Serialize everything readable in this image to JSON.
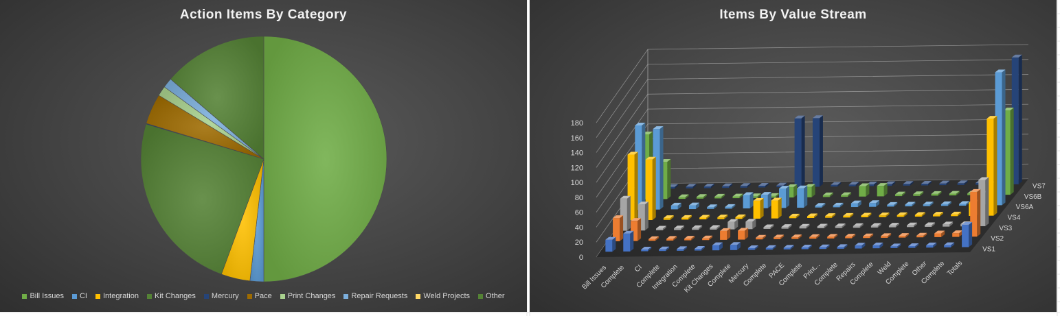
{
  "colors": {
    "panel_bg": "#404040",
    "sheet_bg": "#ffffff",
    "gridline": "#bfbfbf",
    "text": "#d9d9d9",
    "title": "#f2f2f2"
  },
  "chart_data": [
    {
      "type": "pie",
      "title": "Action Items By Category",
      "legend_position": "bottom",
      "labels": [
        "Bill Issues",
        "CI",
        "Integration",
        "Kit Changes",
        "Mercury",
        "Pace",
        "Print Changes",
        "Repair Requests",
        "Weld Projects",
        "Other"
      ],
      "values": [
        50.0,
        1.8,
        3.8,
        24.0,
        0.1,
        4.0,
        1.3,
        1.3,
        0.0,
        13.7
      ],
      "colors": [
        "#70ad47",
        "#5b9bd5",
        "#ffc000",
        "#548235",
        "#264478",
        "#9e6b00",
        "#a9d18e",
        "#7cafdd",
        "#ffd966",
        "#548235"
      ]
    },
    {
      "type": "bar",
      "subtype": "3d-column",
      "title": "Items By Value Stream",
      "grid": true,
      "ylim": [
        0,
        180
      ],
      "yticks": [
        0,
        20,
        40,
        60,
        80,
        100,
        120,
        140,
        160,
        180
      ],
      "categories": [
        "Bill Issues",
        "Complete",
        "CI",
        "Complete",
        "Integration",
        "Complete",
        "Kit Changes",
        "Complete",
        "Mercury",
        "Complete",
        "PACE",
        "Complete",
        "Print...",
        "Complete",
        "Repairs",
        "Complete",
        "Weld",
        "Complete",
        "Other",
        "Complete",
        "Totals"
      ],
      "series": [
        {
          "name": "VS1",
          "color": "#4472c4",
          "values": [
            16,
            24,
            1,
            1,
            0,
            0,
            7,
            7,
            0,
            0,
            1,
            1,
            0,
            0,
            4,
            4,
            0,
            0,
            3,
            3,
            30
          ]
        },
        {
          "name": "VS2",
          "color": "#ed7d31",
          "values": [
            31,
            27,
            2,
            2,
            0,
            0,
            12,
            12,
            0,
            0,
            2,
            2,
            2,
            2,
            0,
            0,
            0,
            0,
            5,
            5,
            60
          ]
        },
        {
          "name": "VS3",
          "color": "#a5a5a5",
          "values": [
            43,
            35,
            0,
            0,
            0,
            0,
            10,
            10,
            0,
            0,
            2,
            2,
            0,
            0,
            0,
            0,
            0,
            0,
            3,
            3,
            62
          ]
        },
        {
          "name": "VS4",
          "color": "#ffc000",
          "values": [
            88,
            81,
            1,
            1,
            0,
            0,
            2,
            24,
            24,
            0,
            1,
            1,
            0,
            0,
            2,
            2,
            0,
            0,
            1,
            18,
            130
          ]
        },
        {
          "name": "VS6A",
          "color": "#5b9bd5",
          "values": [
            113,
            108,
            5,
            5,
            0,
            0,
            18,
            18,
            26,
            26,
            2,
            2,
            5,
            5,
            2,
            2,
            2,
            2,
            2,
            16,
            178
          ]
        },
        {
          "name": "VS6B",
          "color": "#70ad47",
          "values": [
            87,
            50,
            1,
            1,
            0,
            0,
            1,
            0,
            14,
            14,
            0,
            0,
            14,
            14,
            1,
            1,
            1,
            1,
            1,
            15,
            113
          ]
        },
        {
          "name": "VS7",
          "color": "#264478",
          "values": [
            0,
            0,
            0,
            0,
            0,
            0,
            0,
            0,
            92,
            92,
            0,
            0,
            0,
            0,
            0,
            0,
            0,
            0,
            0,
            0,
            170
          ]
        }
      ]
    }
  ]
}
